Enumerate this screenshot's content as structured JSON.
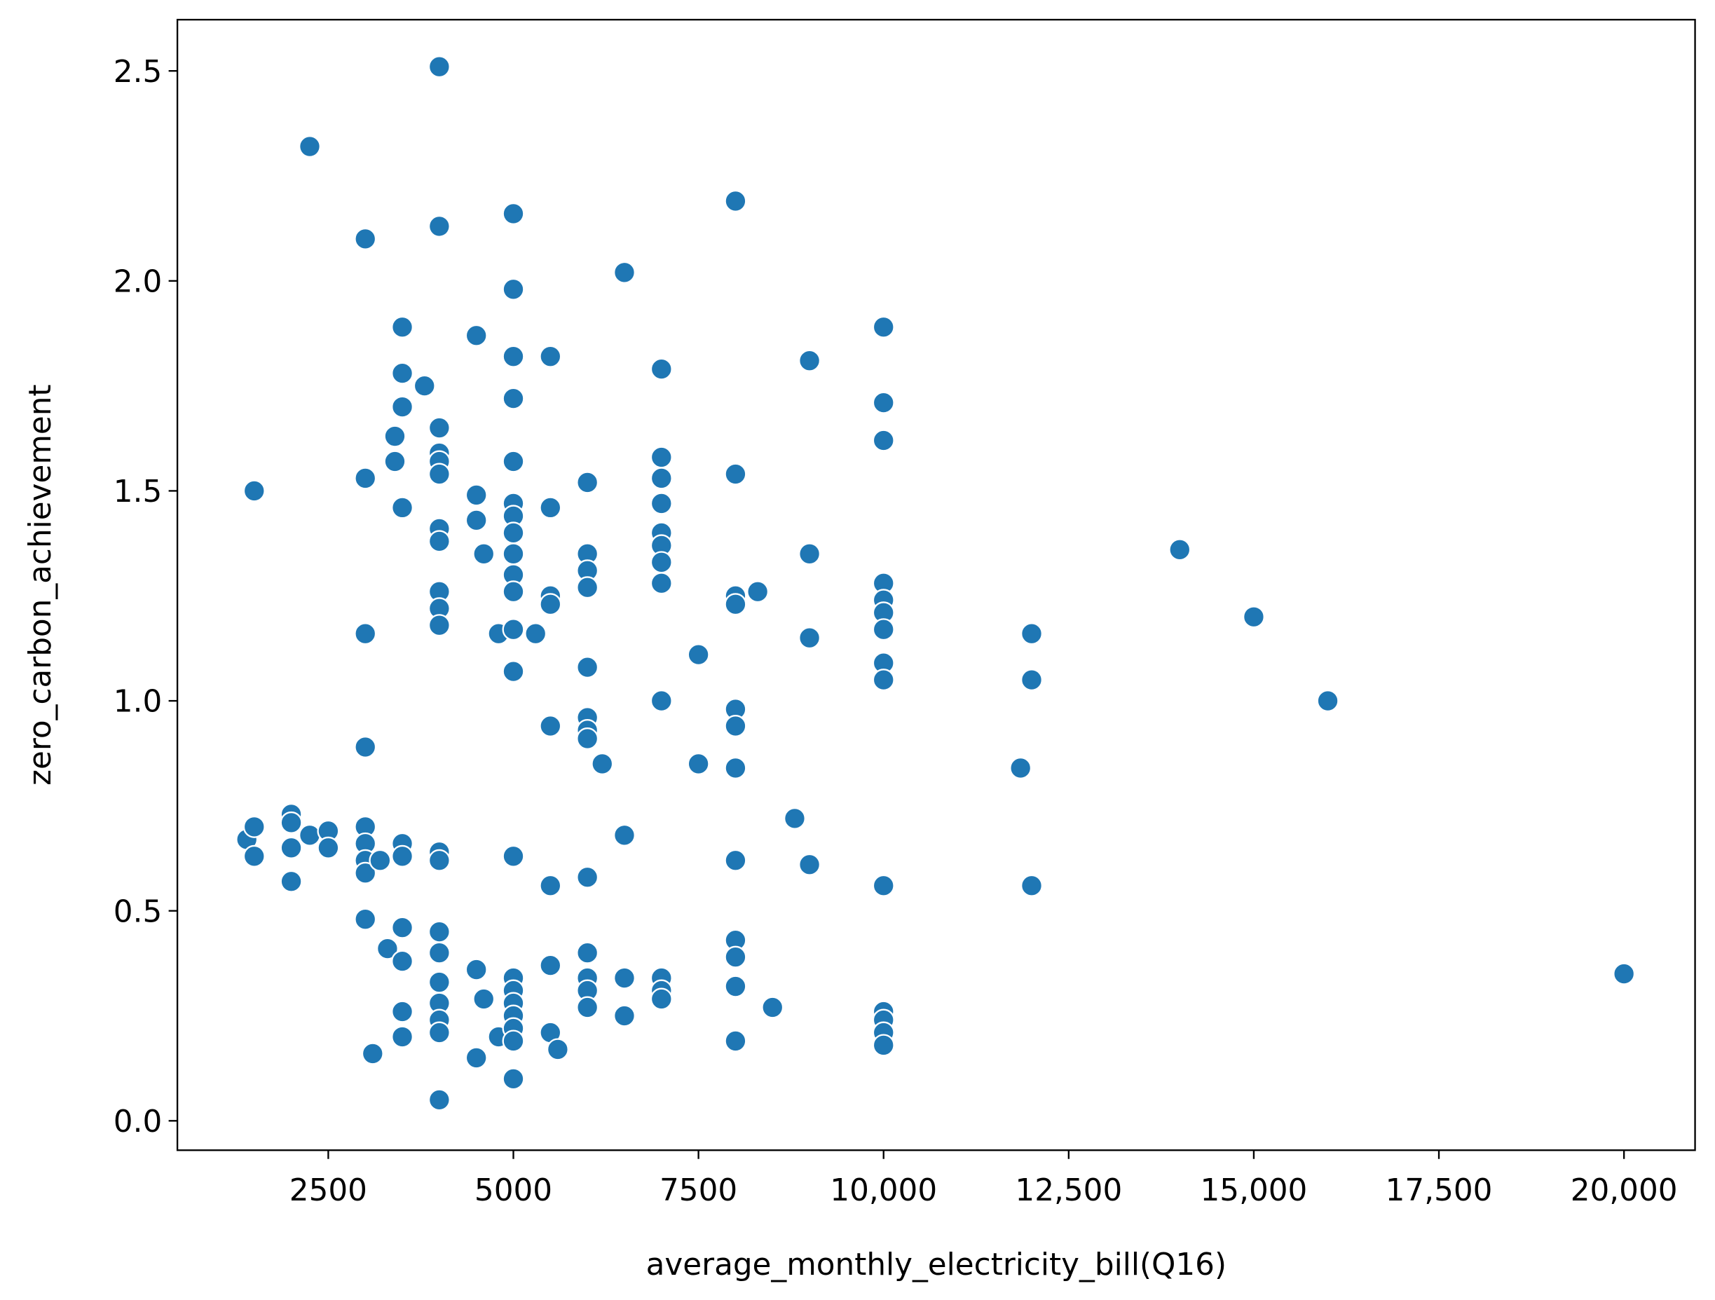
{
  "chart_data": {
    "type": "scatter",
    "xlabel": "average_monthly_electricity_bill(Q16)",
    "ylabel": "zero_carbon_achievement",
    "color": "#1f77b4",
    "x": [
      1400,
      1500,
      1500,
      1500,
      2000,
      2000,
      2000,
      2000,
      2250,
      2250,
      2500,
      2500,
      3000,
      3000,
      3000,
      3000,
      3000,
      3000,
      3000,
      3000,
      3000,
      3100,
      3200,
      3300,
      3400,
      3400,
      3500,
      3500,
      3500,
      3500,
      3500,
      3500,
      3500,
      3500,
      3500,
      3500,
      3800,
      4000,
      4000,
      4000,
      4000,
      4000,
      4000,
      4000,
      4000,
      4000,
      4000,
      4000,
      4000,
      4000,
      4000,
      4000,
      4000,
      4000,
      4000,
      4000,
      4000,
      4500,
      4500,
      4500,
      4500,
      4500,
      4600,
      4600,
      4800,
      4800,
      5000,
      5000,
      5000,
      5000,
      5000,
      5000,
      5000,
      5000,
      5000,
      5000,
      5000,
      5000,
      5000,
      5000,
      5000,
      5000,
      5000,
      5000,
      5000,
      5000,
      5000,
      5300,
      5500,
      5500,
      5500,
      5500,
      5500,
      5500,
      5500,
      5500,
      5600,
      6000,
      6000,
      6000,
      6000,
      6000,
      6000,
      6000,
      6000,
      6000,
      6000,
      6000,
      6000,
      6000,
      6200,
      6500,
      6500,
      6500,
      6500,
      7000,
      7000,
      7000,
      7000,
      7000,
      7000,
      7000,
      7000,
      7000,
      7000,
      7000,
      7000,
      7500,
      7500,
      8000,
      8000,
      8000,
      8000,
      8000,
      8000,
      8000,
      8000,
      8000,
      8000,
      8000,
      8000,
      8300,
      8500,
      8800,
      9000,
      9000,
      9000,
      9000,
      10000,
      10000,
      10000,
      10000,
      10000,
      10000,
      10000,
      10000,
      10000,
      10000,
      10000,
      10000,
      10000,
      10000,
      11850,
      12000,
      12000,
      12000,
      14000,
      15000,
      16000,
      20000
    ],
    "values": [
      0.67,
      1.5,
      0.7,
      0.63,
      0.73,
      0.71,
      0.65,
      0.57,
      2.32,
      0.68,
      0.69,
      0.65,
      2.1,
      1.53,
      1.16,
      0.89,
      0.7,
      0.66,
      0.62,
      0.59,
      0.48,
      0.16,
      0.62,
      0.41,
      1.63,
      1.57,
      1.89,
      1.78,
      1.7,
      1.46,
      0.66,
      0.63,
      0.46,
      0.38,
      0.26,
      0.2,
      1.75,
      2.51,
      2.13,
      1.65,
      1.59,
      1.57,
      1.54,
      1.41,
      1.38,
      1.26,
      1.22,
      1.18,
      0.64,
      0.62,
      0.45,
      0.4,
      0.33,
      0.28,
      0.24,
      0.21,
      0.05,
      1.87,
      1.49,
      1.43,
      0.36,
      0.15,
      1.35,
      0.29,
      1.16,
      0.2,
      2.16,
      1.98,
      1.82,
      1.72,
      1.57,
      1.47,
      1.44,
      1.4,
      1.35,
      1.3,
      1.26,
      1.17,
      1.07,
      0.63,
      0.34,
      0.31,
      0.28,
      0.25,
      0.22,
      0.19,
      0.1,
      1.16,
      1.82,
      1.46,
      1.25,
      1.23,
      0.94,
      0.56,
      0.37,
      0.21,
      0.17,
      1.52,
      1.35,
      1.31,
      1.27,
      1.08,
      0.96,
      0.93,
      0.91,
      0.58,
      0.4,
      0.34,
      0.31,
      0.27,
      0.85,
      2.02,
      0.68,
      0.34,
      0.25,
      1.79,
      1.58,
      1.53,
      1.47,
      1.4,
      1.37,
      1.33,
      1.28,
      1.0,
      0.34,
      0.31,
      0.29,
      1.11,
      0.85,
      2.19,
      1.54,
      1.25,
      1.23,
      0.98,
      0.94,
      0.84,
      0.62,
      0.43,
      0.39,
      0.32,
      0.19,
      1.26,
      0.27,
      0.72,
      1.81,
      1.35,
      1.15,
      0.61,
      1.89,
      1.71,
      1.62,
      1.28,
      1.24,
      1.21,
      1.17,
      1.09,
      1.05,
      0.56,
      0.26,
      0.24,
      0.21,
      0.18,
      0.84,
      1.16,
      1.05,
      0.56,
      1.36,
      1.2,
      1.0,
      0.35
    ],
    "xlim": [
      462,
      20960
    ],
    "ylim": [
      -0.07,
      2.622
    ],
    "xticks": [
      2500,
      5000,
      7500,
      {
        "value": 10000,
        "label": "10,000"
      },
      {
        "value": 12500,
        "label": "12,500"
      },
      {
        "value": 15000,
        "label": "15,000"
      },
      {
        "value": 17500,
        "label": "17,500"
      },
      {
        "value": 20000,
        "label": "20,000"
      }
    ],
    "yticks": [
      {
        "value": 0,
        "label": "0.0"
      },
      0.5,
      {
        "value": 1,
        "label": "1.0"
      },
      1.5,
      {
        "value": 2,
        "label": "2.0"
      },
      2.5
    ]
  }
}
